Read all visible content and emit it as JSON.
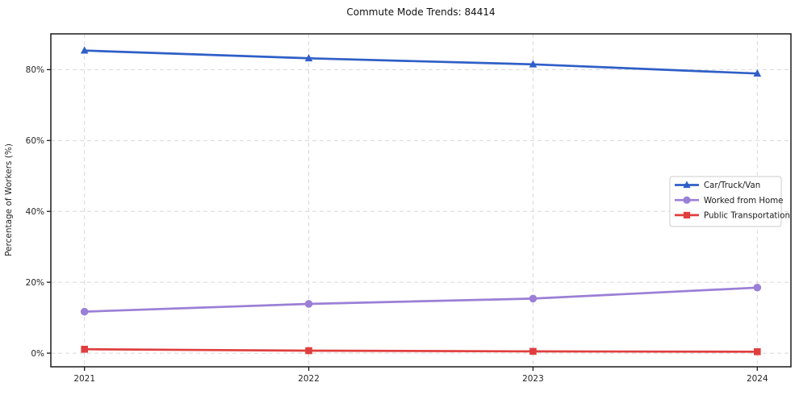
{
  "chart_data": {
    "type": "line",
    "title": "Commute Mode Trends: 84414",
    "xlabel": "",
    "ylabel": "Percentage of Workers (%)",
    "x": [
      2021,
      2022,
      2023,
      2024
    ],
    "xticklabels": [
      "2021",
      "2022",
      "2023",
      "2024"
    ],
    "yticks": [
      0,
      20,
      40,
      60,
      80
    ],
    "yticklabels": [
      "0%",
      "20%",
      "40%",
      "60%",
      "80%"
    ],
    "xlim": [
      2020.85,
      2024.15
    ],
    "ylim": [
      -3.85,
      90.1
    ],
    "grid": true,
    "grid_style": "dashed",
    "legend_position": "center-right",
    "series": [
      {
        "name": "Car/Truck/Van",
        "color": "#2f5fc7",
        "marker": "triangle-up",
        "values": [
          85.4,
          83.2,
          81.5,
          78.9
        ]
      },
      {
        "name": "Worked from Home",
        "color": "#9b7fd6",
        "marker": "circle",
        "values": [
          11.7,
          13.9,
          15.4,
          18.5
        ]
      },
      {
        "name": "Public Transportation",
        "color": "#e03e3e",
        "marker": "square",
        "values": [
          1.1,
          0.7,
          0.5,
          0.4
        ]
      }
    ],
    "colors": {
      "background": "#ffffff",
      "grid": "#d8d8d8",
      "spine": "#1a1a1a",
      "tick": "#1a1a1a",
      "tick_label": "#262626",
      "legend_border": "#cccccc",
      "legend_background": "#ffffff"
    }
  }
}
